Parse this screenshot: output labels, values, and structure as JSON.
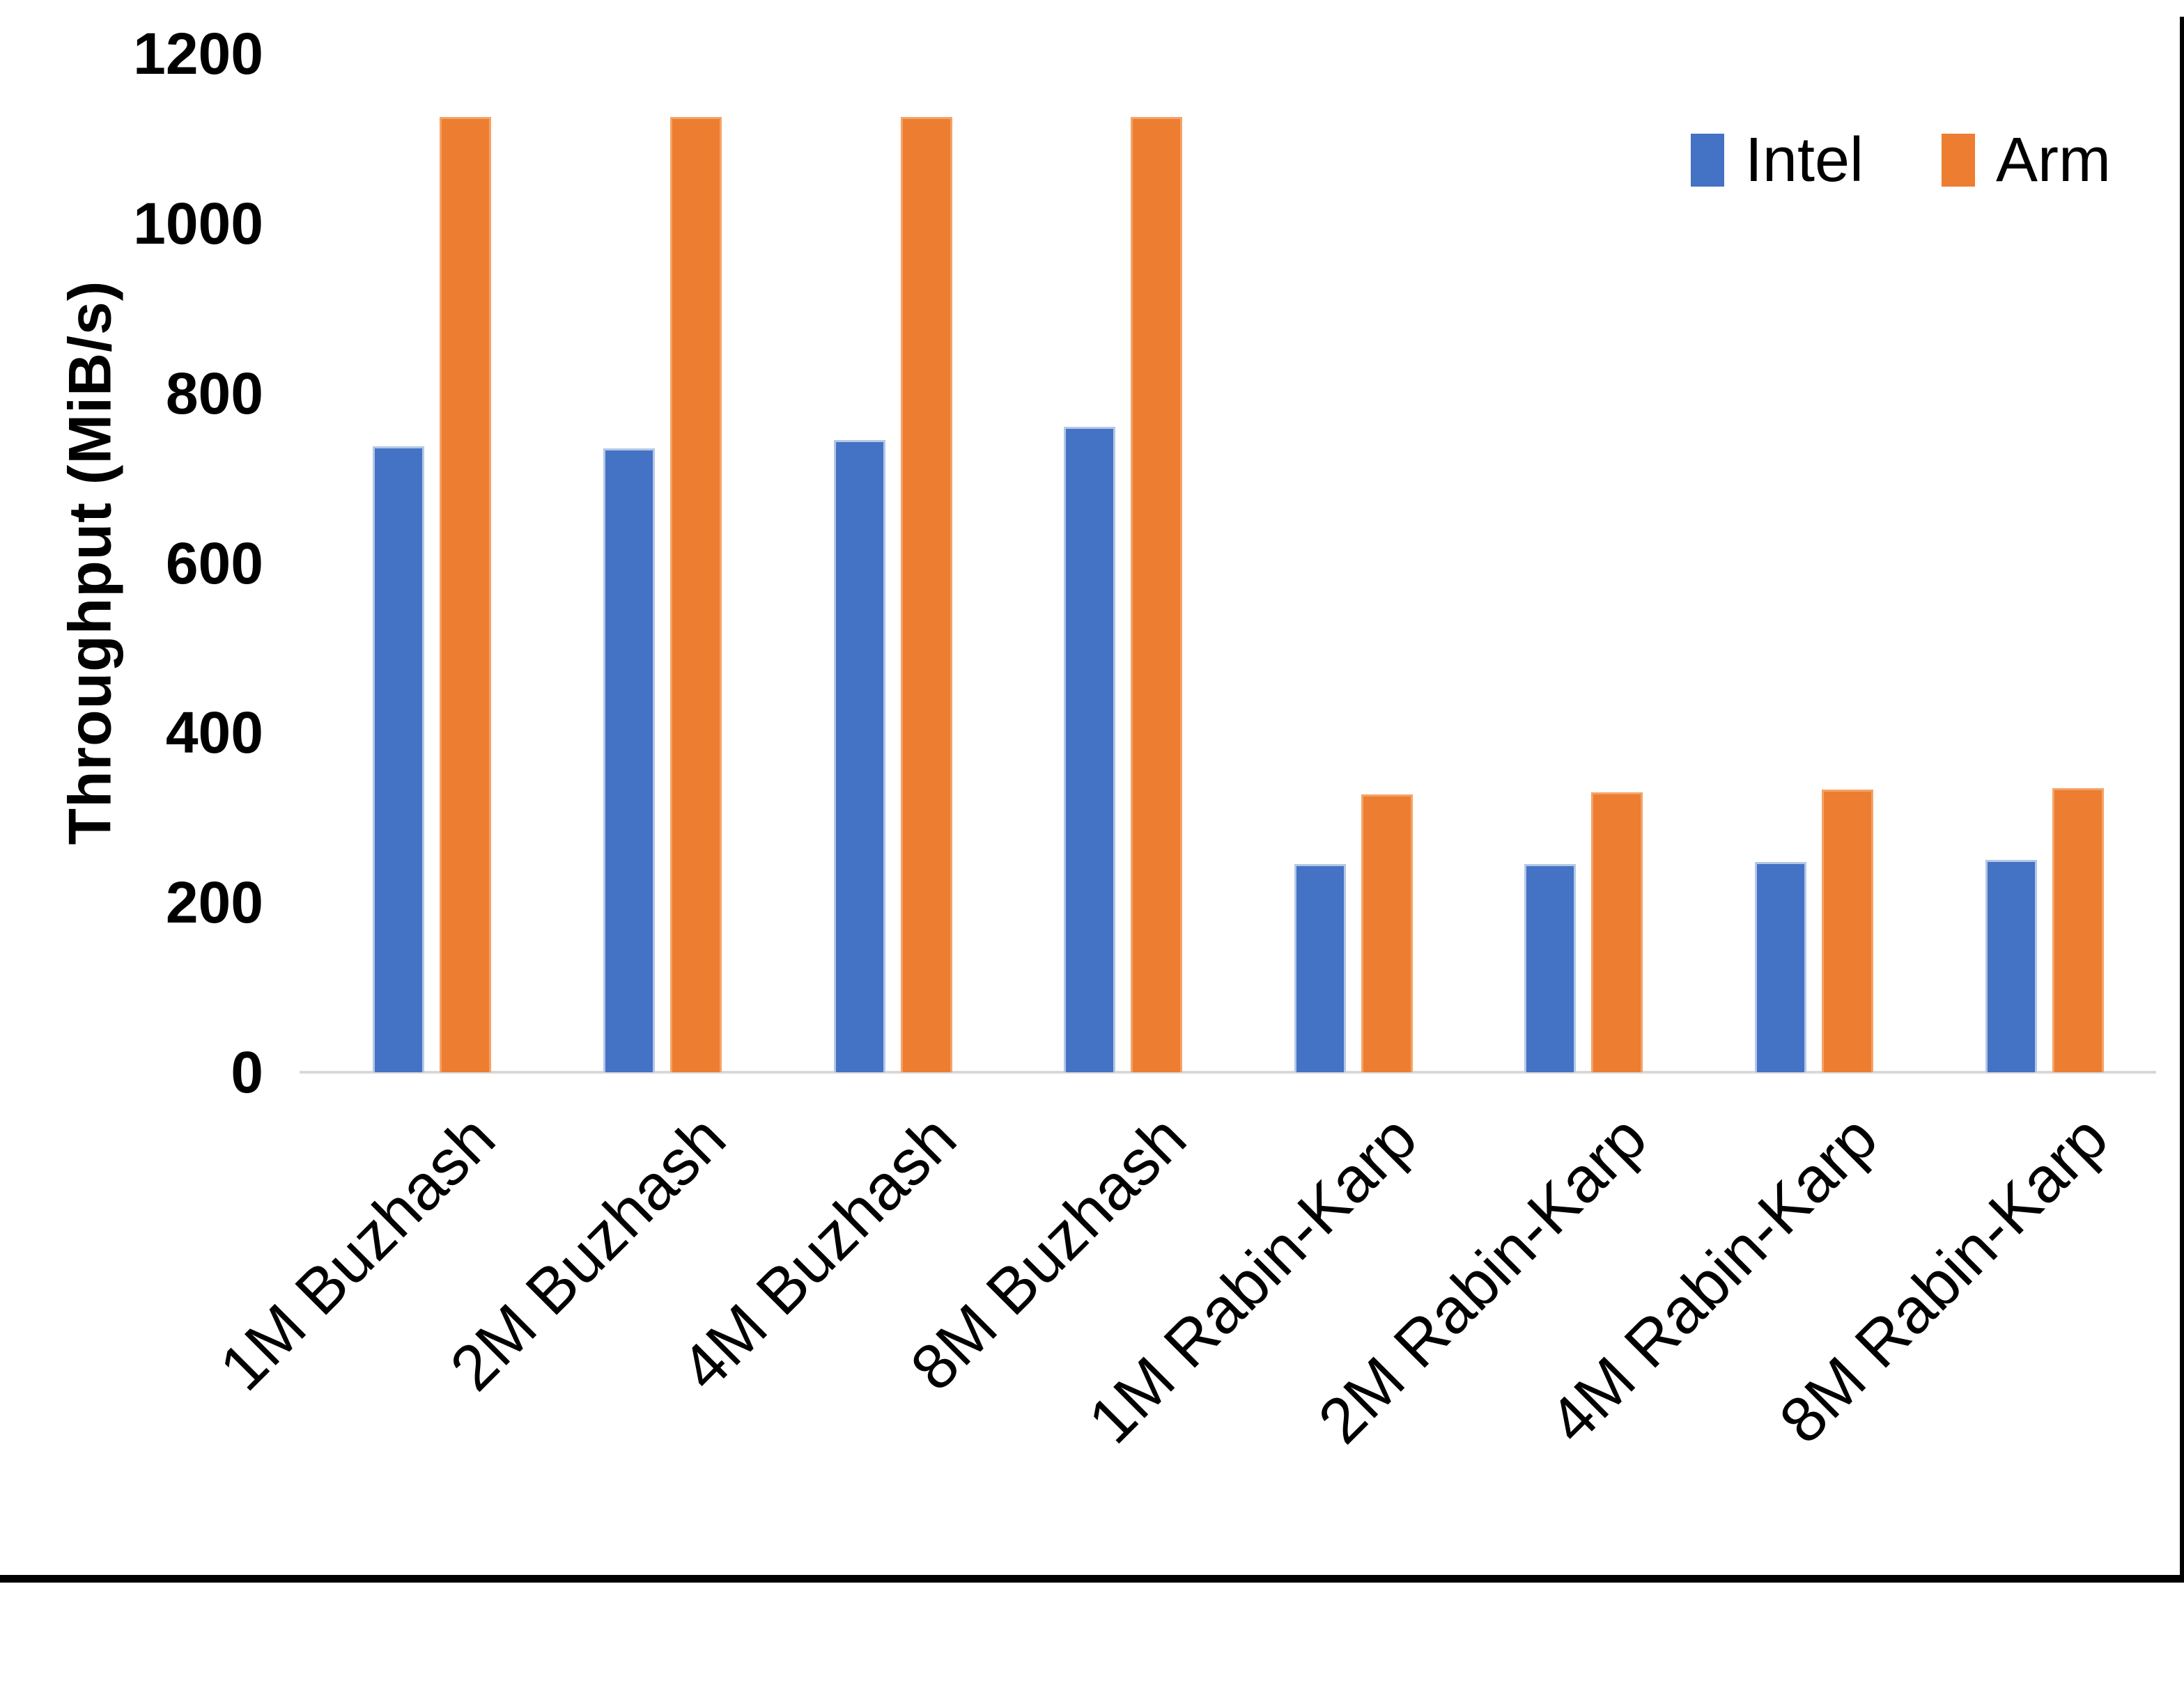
{
  "chart_data": {
    "type": "bar",
    "title": "",
    "categories": [
      "1M Buzhash",
      "2M Buzhash",
      "4M Buzhash",
      "8M Buzhash",
      "1M Rabin-Karp",
      "2M Rabin-Karp",
      "4M Rabin-Karp",
      "8M Rabin-Karp"
    ],
    "series": [
      {
        "name": "Intel",
        "color": "#4472C4",
        "border_color": "#B4C7E7",
        "values": [
          737,
          735,
          745,
          760,
          245,
          245,
          248,
          250
        ]
      },
      {
        "name": "Arm",
        "color": "#ED7D31",
        "border_color": "#F4A368",
        "values": [
          1125,
          1125,
          1125,
          1125,
          327,
          330,
          333,
          335
        ]
      }
    ],
    "xlabel": "",
    "ylabel": "Throughput (MiB/s)",
    "ylim": [
      0,
      1200
    ],
    "y_tick_step": 200,
    "y_ticks": [
      0,
      200,
      400,
      600,
      800,
      1000,
      1200
    ],
    "grid": false,
    "legend_position": "top-right",
    "axis_line_color": "#D9D9D9"
  },
  "frame": {
    "border_color": "#000000"
  }
}
